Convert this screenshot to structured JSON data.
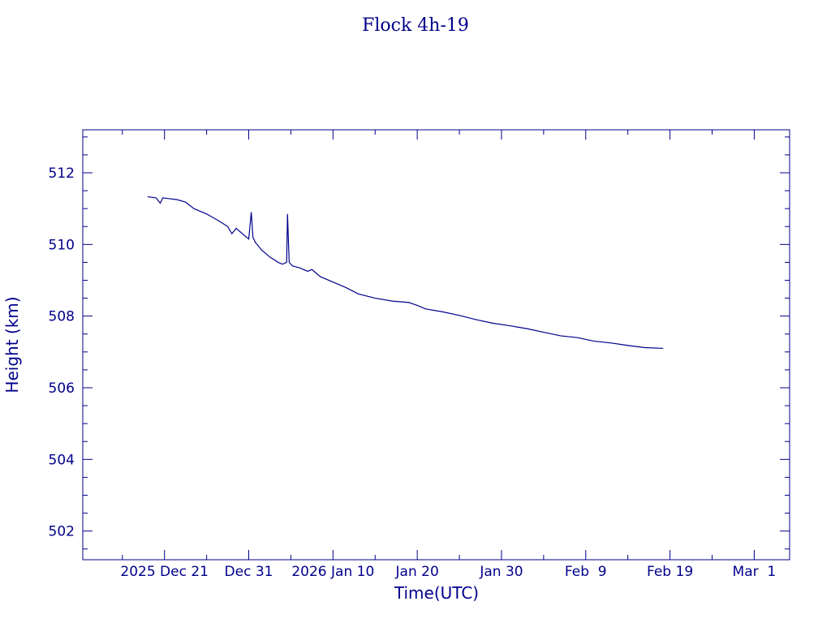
{
  "chart_data": {
    "type": "line",
    "title": "Flock 4h-19",
    "xlabel": "Time(UTC)",
    "ylabel": "Height (km)",
    "ylim": [
      501.2,
      513.2
    ],
    "xlim_days": [
      -9.7,
      74.2
    ],
    "y_ticks": [
      "512",
      "510",
      "508",
      "506",
      "504",
      "502"
    ],
    "y_tick_values": [
      512,
      510,
      508,
      506,
      504,
      502
    ],
    "x_ticks": [
      {
        "label": "2025 Dec 21",
        "day": 0
      },
      {
        "label": "Dec 31",
        "day": 10
      },
      {
        "label": "2026 Jan 10",
        "day": 20
      },
      {
        "label": "Jan 20",
        "day": 30
      },
      {
        "label": "Jan 30",
        "day": 40
      },
      {
        "label": "Feb  9",
        "day": 50
      },
      {
        "label": "Feb 19",
        "day": 60
      },
      {
        "label": "Mar  1",
        "day": 70
      }
    ],
    "grid": false,
    "color": "#00008b",
    "series": [
      {
        "x": [
          -2.0,
          -1.0,
          -0.5,
          -0.2,
          0.5,
          1.5,
          2.5,
          3.5,
          5.0,
          6.5,
          7.5,
          8.0,
          8.5,
          9.0,
          9.5,
          10.0,
          10.3,
          10.5,
          10.6,
          10.8,
          11.0,
          11.5,
          12.5,
          13.5,
          14.0,
          14.5,
          14.6,
          14.8,
          15.0,
          15.2,
          16.0,
          17.0,
          17.5,
          18.5,
          20.0,
          21.5,
          23.0,
          25.0,
          27.0,
          29.0,
          30.0,
          31.0,
          33.0,
          35.0,
          37.0,
          39.0,
          41.0,
          43.0,
          45.0,
          47.0,
          49.0,
          51.0,
          53.0,
          55.0,
          57.0,
          59.2
        ],
        "y": [
          511.33,
          511.3,
          511.15,
          511.3,
          511.28,
          511.25,
          511.18,
          511.0,
          510.85,
          510.65,
          510.5,
          510.3,
          510.45,
          510.35,
          510.25,
          510.15,
          510.9,
          510.2,
          510.15,
          510.05,
          510.0,
          509.85,
          509.65,
          509.5,
          509.45,
          509.5,
          510.85,
          509.5,
          509.45,
          509.4,
          509.35,
          509.25,
          509.3,
          509.1,
          508.95,
          508.8,
          508.62,
          508.5,
          508.42,
          508.38,
          508.3,
          508.2,
          508.12,
          508.02,
          507.9,
          507.8,
          507.73,
          507.65,
          507.55,
          507.45,
          507.4,
          507.3,
          507.25,
          507.18,
          507.12,
          507.1
        ]
      }
    ]
  }
}
